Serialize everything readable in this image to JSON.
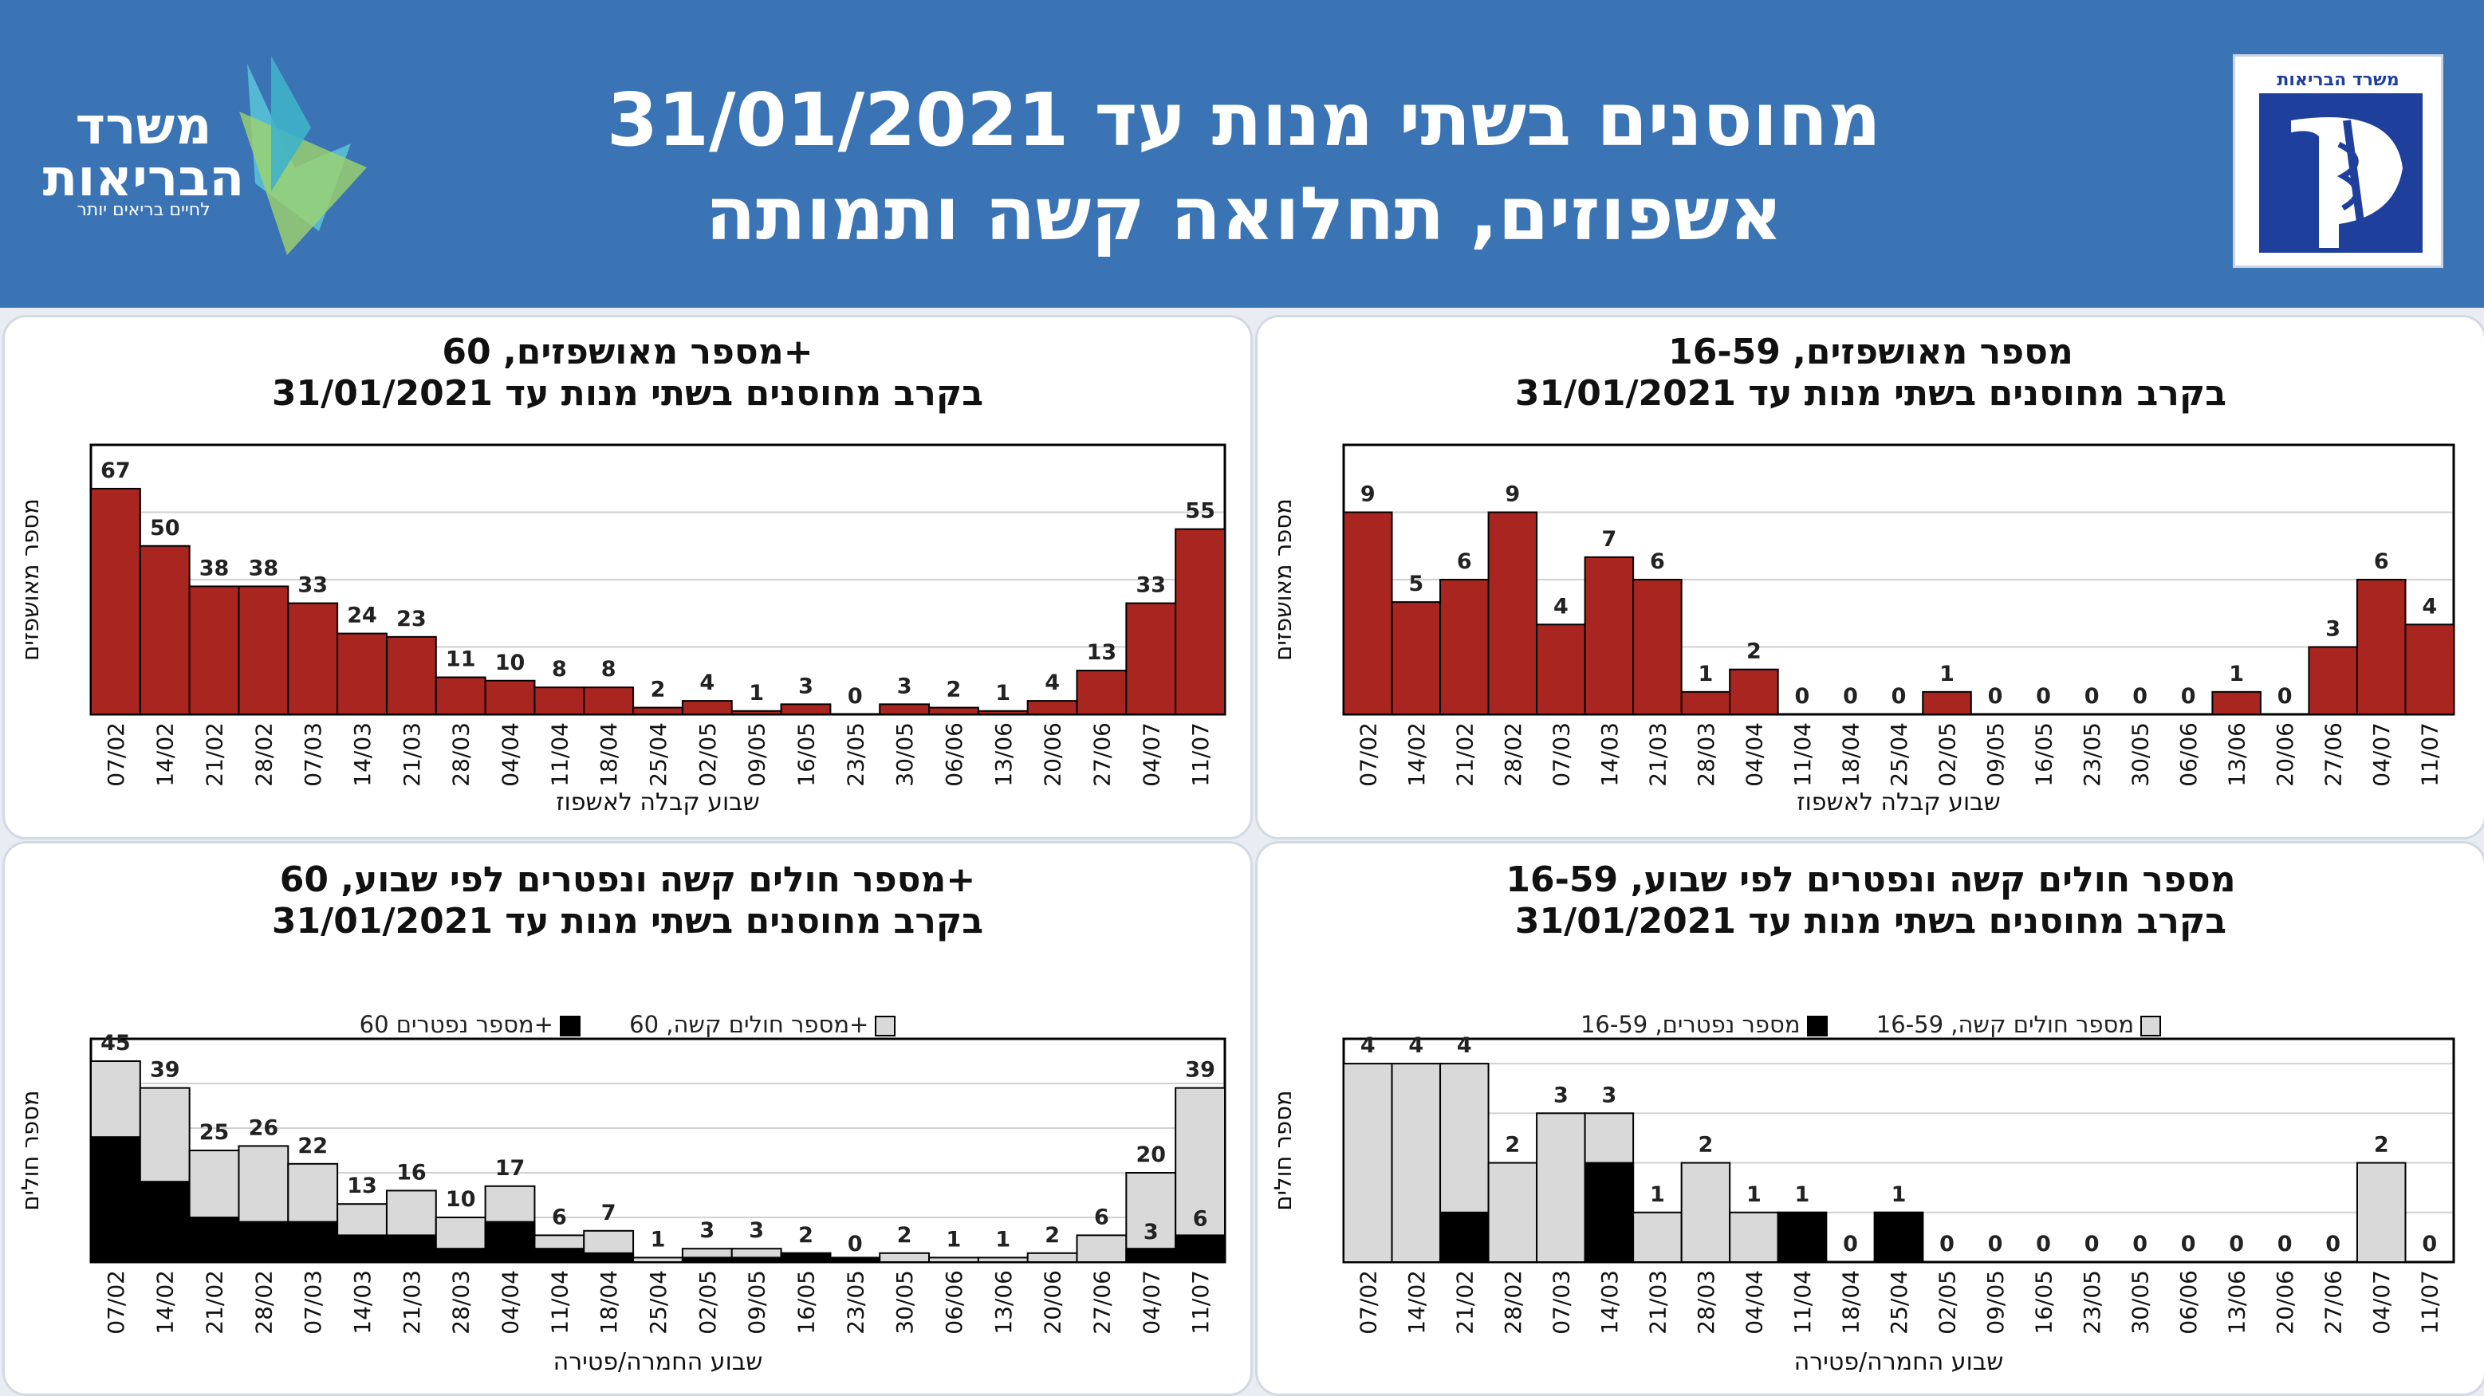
{
  "header": {
    "title_line1": "מחוסנים בשתי מנות עד 31/01/2021",
    "title_line2": "אשפוזים, תחלואה קשה ותמותה",
    "logo_left_text": "משרד",
    "logo_left_text2": "הבריאות",
    "logo_left_tagline": "לחיים בריאים יותר",
    "logo_right_text": "משרד הבריאות",
    "colors": {
      "background": "#3a74b4",
      "logo_right_blue": "#1f3f9c"
    }
  },
  "chart_data": [
    {
      "id": "hosp_60",
      "type": "bar",
      "title_line1": "מספר מאושפזים, 60+",
      "title_line2": "בקרב מחוסנים בשתי מנות עד 31/01/2021",
      "ylabel": "מספר מאושפזים",
      "xlabel": "שבוע קבלה לאשפוז",
      "categories": [
        "07/02",
        "14/02",
        "21/02",
        "28/02",
        "07/03",
        "14/03",
        "21/03",
        "28/03",
        "04/04",
        "11/04",
        "18/04",
        "25/04",
        "02/05",
        "09/05",
        "16/05",
        "23/05",
        "30/05",
        "06/06",
        "13/06",
        "20/06",
        "27/06",
        "04/07",
        "11/07"
      ],
      "values": [
        67,
        50,
        38,
        38,
        33,
        24,
        23,
        11,
        10,
        8,
        8,
        2,
        4,
        1,
        3,
        0,
        3,
        2,
        1,
        4,
        13,
        33,
        55
      ],
      "ylim": [
        0,
        80
      ],
      "colors": {
        "bar": "#a92620"
      }
    },
    {
      "id": "hosp_16_59",
      "type": "bar",
      "title_line1": "מספר מאושפזים, 16-59",
      "title_line2": "בקרב מחוסנים בשתי מנות עד 31/01/2021",
      "ylabel": "מספר מאושפזים",
      "xlabel": "שבוע קבלה לאשפוז",
      "categories": [
        "07/02",
        "14/02",
        "21/02",
        "28/02",
        "07/03",
        "14/03",
        "21/03",
        "28/03",
        "04/04",
        "11/04",
        "18/04",
        "25/04",
        "02/05",
        "09/05",
        "16/05",
        "23/05",
        "30/05",
        "06/06",
        "13/06",
        "20/06",
        "27/06",
        "04/07",
        "11/07"
      ],
      "values": [
        9,
        5,
        6,
        9,
        4,
        7,
        6,
        1,
        2,
        0,
        0,
        0,
        1,
        0,
        0,
        0,
        0,
        0,
        1,
        0,
        3,
        6,
        4
      ],
      "ylim": [
        0,
        12
      ],
      "colors": {
        "bar": "#a92620"
      }
    },
    {
      "id": "severe_60",
      "type": "bar",
      "stacked": true,
      "title_line1": "מספר חולים קשה ונפטרים לפי שבוע, 60+",
      "title_line2": "בקרב מחוסנים בשתי מנות עד 31/01/2021",
      "ylabel": "מספר חולים",
      "xlabel": "שבוע החמרה/פטירה",
      "legend_severe": "מספר חולים קשה, 60+",
      "legend_deaths": "מספר נפטרים 60+",
      "categories": [
        "07/02",
        "14/02",
        "21/02",
        "28/02",
        "07/03",
        "14/03",
        "21/03",
        "28/03",
        "04/04",
        "11/04",
        "18/04",
        "25/04",
        "02/05",
        "09/05",
        "16/05",
        "23/05",
        "30/05",
        "06/06",
        "13/06",
        "20/06",
        "27/06",
        "04/07",
        "11/07"
      ],
      "severe": [
        45,
        39,
        25,
        26,
        22,
        13,
        16,
        10,
        17,
        6,
        7,
        1,
        3,
        3,
        2,
        0,
        2,
        1,
        1,
        2,
        6,
        20,
        39
      ],
      "deaths": [
        28,
        18,
        10,
        9,
        9,
        6,
        6,
        3,
        9,
        3,
        2,
        0,
        1,
        1,
        2,
        1,
        0,
        0,
        0,
        0,
        0,
        3,
        6
      ],
      "death_labels": {
        "21": "3",
        "22": "6"
      },
      "ylim": [
        0,
        50
      ],
      "colors": {
        "severe": "#d9d9d9",
        "deaths": "#000000"
      }
    },
    {
      "id": "severe_16_59",
      "type": "bar",
      "stacked": true,
      "title_line1": "מספר חולים קשה ונפטרים לפי שבוע, 16-59",
      "title_line2": "בקרב מחוסנים בשתי מנות עד 31/01/2021",
      "ylabel": "מספר חולים",
      "xlabel": "שבוע החמרה/פטירה",
      "legend_severe": "מספר חולים קשה, 16-59",
      "legend_deaths": "מספר נפטרים, 16-59",
      "categories": [
        "07/02",
        "14/02",
        "21/02",
        "28/02",
        "07/03",
        "14/03",
        "21/03",
        "28/03",
        "04/04",
        "11/04",
        "18/04",
        "25/04",
        "02/05",
        "09/05",
        "16/05",
        "23/05",
        "30/05",
        "06/06",
        "13/06",
        "20/06",
        "27/06",
        "04/07",
        "11/07"
      ],
      "severe": [
        4,
        4,
        4,
        2,
        3,
        3,
        1,
        2,
        1,
        1,
        0,
        1,
        0,
        0,
        0,
        0,
        0,
        0,
        0,
        0,
        0,
        2,
        0
      ],
      "deaths": [
        0,
        0,
        1,
        0,
        0,
        2,
        0,
        0,
        0,
        1,
        0,
        1,
        0,
        0,
        0,
        0,
        0,
        0,
        0,
        0,
        0,
        0,
        0
      ],
      "ylim": [
        0,
        4.5
      ],
      "colors": {
        "severe": "#d9d9d9",
        "deaths": "#000000"
      }
    }
  ]
}
